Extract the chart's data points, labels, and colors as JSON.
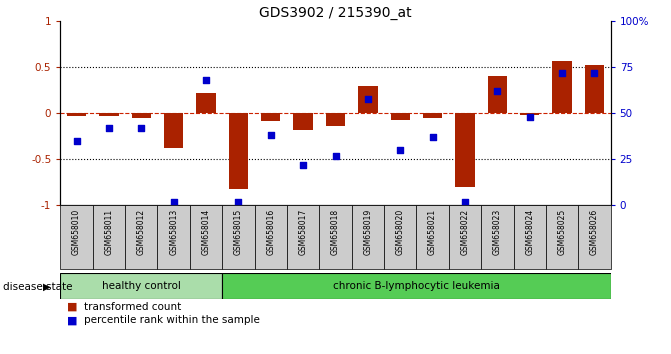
{
  "title": "GDS3902 / 215390_at",
  "samples": [
    "GSM658010",
    "GSM658011",
    "GSM658012",
    "GSM658013",
    "GSM658014",
    "GSM658015",
    "GSM658016",
    "GSM658017",
    "GSM658018",
    "GSM658019",
    "GSM658020",
    "GSM658021",
    "GSM658022",
    "GSM658023",
    "GSM658024",
    "GSM658025",
    "GSM658026"
  ],
  "bar_values": [
    -0.03,
    -0.03,
    -0.05,
    -0.38,
    0.22,
    -0.82,
    -0.08,
    -0.18,
    -0.14,
    0.3,
    -0.07,
    -0.05,
    -0.8,
    0.4,
    -0.02,
    0.57,
    0.52
  ],
  "dot_values": [
    35,
    42,
    42,
    2,
    68,
    2,
    38,
    22,
    27,
    58,
    30,
    37,
    2,
    62,
    48,
    72,
    72
  ],
  "healthy_count": 5,
  "disease_label_healthy": "healthy control",
  "disease_label_leukemia": "chronic B-lymphocytic leukemia",
  "disease_state_label": "disease state",
  "legend_bar": "transformed count",
  "legend_dot": "percentile rank within the sample",
  "bar_color": "#AA2200",
  "dot_color": "#0000CC",
  "bar_width": 0.6,
  "ylim_left": [
    -1.0,
    1.0
  ],
  "ylim_right": [
    0,
    100
  ],
  "yticks_left": [
    -1.0,
    -0.5,
    0.0,
    0.5,
    1.0
  ],
  "ytick_labels_left": [
    "-1",
    "-0.5",
    "0",
    "0.5",
    "1"
  ],
  "yticks_right": [
    0,
    25,
    50,
    75,
    100
  ],
  "ytick_labels_right": [
    "0",
    "25",
    "50",
    "75",
    "100%"
  ],
  "hline_color": "#CC2200",
  "dotted_hlines": [
    0.5,
    -0.5
  ],
  "healthy_bg": "#aaddaa",
  "leukemia_bg": "#55cc55",
  "xticklabel_bg": "#cccccc",
  "title_fontsize": 10,
  "tick_fontsize": 7.5
}
